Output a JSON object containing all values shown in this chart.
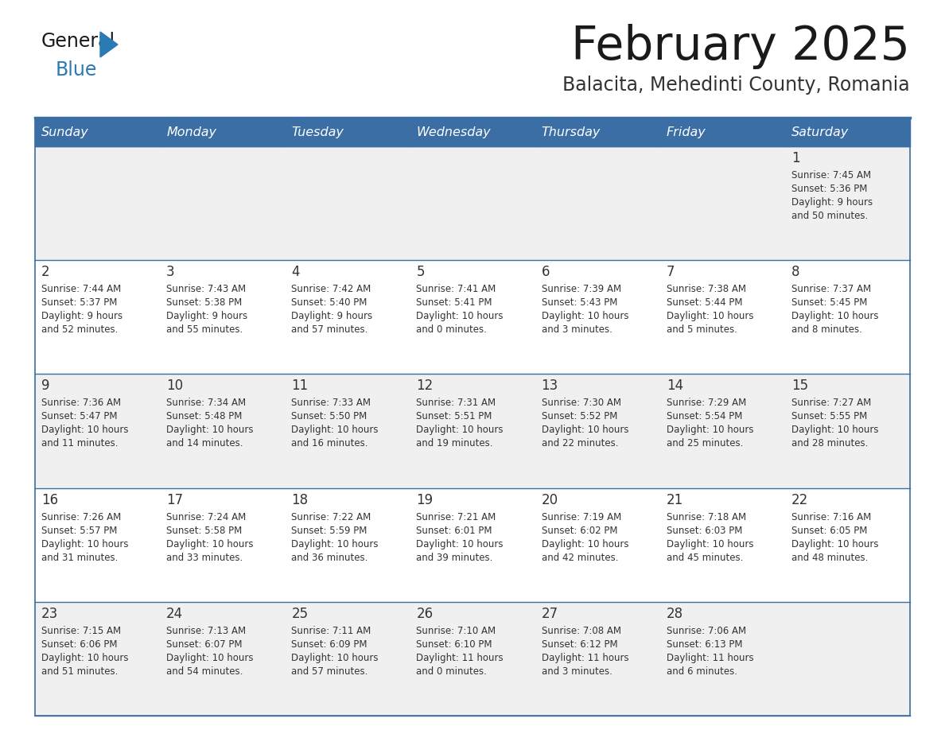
{
  "title": "February 2025",
  "subtitle": "Balacita, Mehedinti County, Romania",
  "header_bg_color": "#3a6ea5",
  "header_text_color": "#ffffff",
  "cell_bg_even": "#f0f0f0",
  "cell_bg_odd": "#ffffff",
  "border_color": "#3a6ea5",
  "text_color": "#333333",
  "day_names": [
    "Sunday",
    "Monday",
    "Tuesday",
    "Wednesday",
    "Thursday",
    "Friday",
    "Saturday"
  ],
  "calendar": [
    [
      null,
      null,
      null,
      null,
      null,
      null,
      {
        "day": "1",
        "sunrise": "7:45 AM",
        "sunset": "5:36 PM",
        "daylight": "9 hours",
        "daylight2": "and 50 minutes."
      }
    ],
    [
      {
        "day": "2",
        "sunrise": "7:44 AM",
        "sunset": "5:37 PM",
        "daylight": "9 hours",
        "daylight2": "and 52 minutes."
      },
      {
        "day": "3",
        "sunrise": "7:43 AM",
        "sunset": "5:38 PM",
        "daylight": "9 hours",
        "daylight2": "and 55 minutes."
      },
      {
        "day": "4",
        "sunrise": "7:42 AM",
        "sunset": "5:40 PM",
        "daylight": "9 hours",
        "daylight2": "and 57 minutes."
      },
      {
        "day": "5",
        "sunrise": "7:41 AM",
        "sunset": "5:41 PM",
        "daylight": "10 hours",
        "daylight2": "and 0 minutes."
      },
      {
        "day": "6",
        "sunrise": "7:39 AM",
        "sunset": "5:43 PM",
        "daylight": "10 hours",
        "daylight2": "and 3 minutes."
      },
      {
        "day": "7",
        "sunrise": "7:38 AM",
        "sunset": "5:44 PM",
        "daylight": "10 hours",
        "daylight2": "and 5 minutes."
      },
      {
        "day": "8",
        "sunrise": "7:37 AM",
        "sunset": "5:45 PM",
        "daylight": "10 hours",
        "daylight2": "and 8 minutes."
      }
    ],
    [
      {
        "day": "9",
        "sunrise": "7:36 AM",
        "sunset": "5:47 PM",
        "daylight": "10 hours",
        "daylight2": "and 11 minutes."
      },
      {
        "day": "10",
        "sunrise": "7:34 AM",
        "sunset": "5:48 PM",
        "daylight": "10 hours",
        "daylight2": "and 14 minutes."
      },
      {
        "day": "11",
        "sunrise": "7:33 AM",
        "sunset": "5:50 PM",
        "daylight": "10 hours",
        "daylight2": "and 16 minutes."
      },
      {
        "day": "12",
        "sunrise": "7:31 AM",
        "sunset": "5:51 PM",
        "daylight": "10 hours",
        "daylight2": "and 19 minutes."
      },
      {
        "day": "13",
        "sunrise": "7:30 AM",
        "sunset": "5:52 PM",
        "daylight": "10 hours",
        "daylight2": "and 22 minutes."
      },
      {
        "day": "14",
        "sunrise": "7:29 AM",
        "sunset": "5:54 PM",
        "daylight": "10 hours",
        "daylight2": "and 25 minutes."
      },
      {
        "day": "15",
        "sunrise": "7:27 AM",
        "sunset": "5:55 PM",
        "daylight": "10 hours",
        "daylight2": "and 28 minutes."
      }
    ],
    [
      {
        "day": "16",
        "sunrise": "7:26 AM",
        "sunset": "5:57 PM",
        "daylight": "10 hours",
        "daylight2": "and 31 minutes."
      },
      {
        "day": "17",
        "sunrise": "7:24 AM",
        "sunset": "5:58 PM",
        "daylight": "10 hours",
        "daylight2": "and 33 minutes."
      },
      {
        "day": "18",
        "sunrise": "7:22 AM",
        "sunset": "5:59 PM",
        "daylight": "10 hours",
        "daylight2": "and 36 minutes."
      },
      {
        "day": "19",
        "sunrise": "7:21 AM",
        "sunset": "6:01 PM",
        "daylight": "10 hours",
        "daylight2": "and 39 minutes."
      },
      {
        "day": "20",
        "sunrise": "7:19 AM",
        "sunset": "6:02 PM",
        "daylight": "10 hours",
        "daylight2": "and 42 minutes."
      },
      {
        "day": "21",
        "sunrise": "7:18 AM",
        "sunset": "6:03 PM",
        "daylight": "10 hours",
        "daylight2": "and 45 minutes."
      },
      {
        "day": "22",
        "sunrise": "7:16 AM",
        "sunset": "6:05 PM",
        "daylight": "10 hours",
        "daylight2": "and 48 minutes."
      }
    ],
    [
      {
        "day": "23",
        "sunrise": "7:15 AM",
        "sunset": "6:06 PM",
        "daylight": "10 hours",
        "daylight2": "and 51 minutes."
      },
      {
        "day": "24",
        "sunrise": "7:13 AM",
        "sunset": "6:07 PM",
        "daylight": "10 hours",
        "daylight2": "and 54 minutes."
      },
      {
        "day": "25",
        "sunrise": "7:11 AM",
        "sunset": "6:09 PM",
        "daylight": "10 hours",
        "daylight2": "and 57 minutes."
      },
      {
        "day": "26",
        "sunrise": "7:10 AM",
        "sunset": "6:10 PM",
        "daylight": "11 hours",
        "daylight2": "and 0 minutes."
      },
      {
        "day": "27",
        "sunrise": "7:08 AM",
        "sunset": "6:12 PM",
        "daylight": "11 hours",
        "daylight2": "and 3 minutes."
      },
      {
        "day": "28",
        "sunrise": "7:06 AM",
        "sunset": "6:13 PM",
        "daylight": "11 hours",
        "daylight2": "and 6 minutes."
      },
      null
    ]
  ]
}
